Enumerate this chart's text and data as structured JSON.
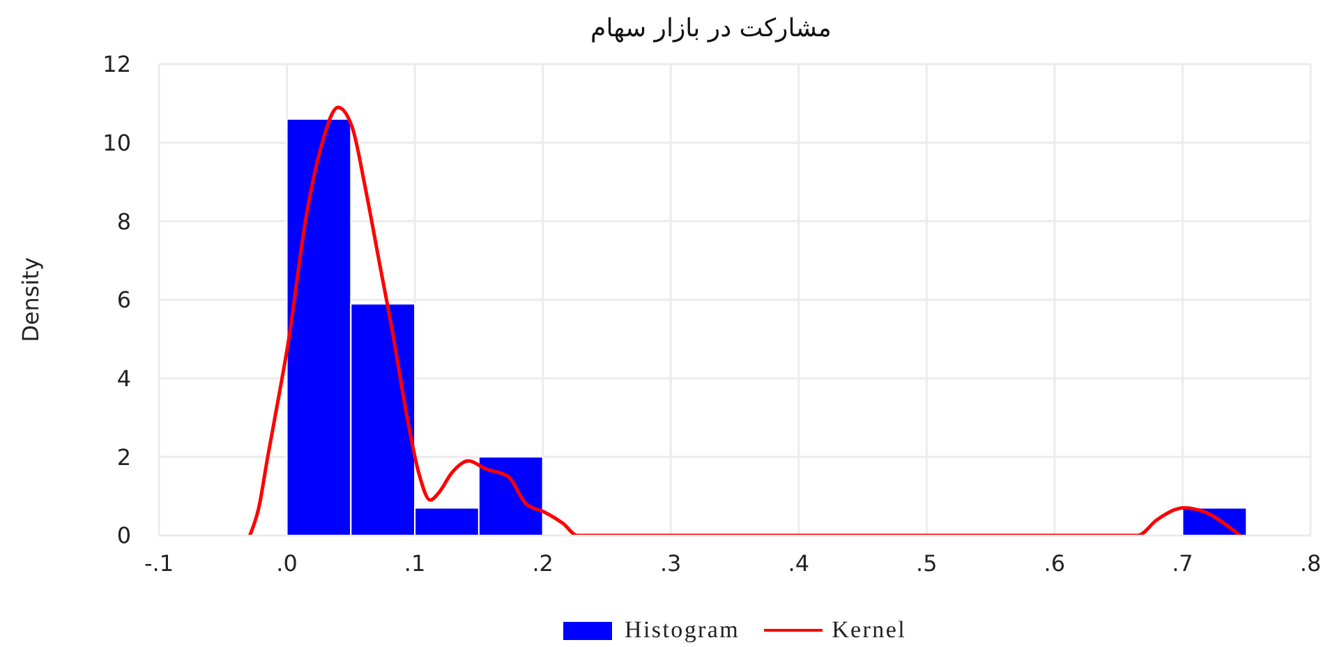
{
  "chart_data": {
    "type": "histogram",
    "title": "مشارکت در بازار سهام",
    "ylabel": "Density",
    "series": [
      {
        "name": "Histogram",
        "type": "histogram",
        "color": "#0000ff",
        "bins": [
          0,
          0.05,
          0.1,
          0.15,
          0.2,
          0.7,
          0.75
        ],
        "values": [
          10.6,
          5.9,
          0.7,
          2.0,
          0,
          0.7
        ]
      },
      {
        "name": "Kernel",
        "type": "line",
        "color": "#ff0000",
        "x": [
          -0.029,
          -0.022,
          -0.015,
          -0.006,
          0.001,
          0.015,
          0.026,
          0.04,
          0.051,
          0.061,
          0.072,
          0.083,
          0.094,
          0.103,
          0.112,
          0.119,
          0.129,
          0.142,
          0.155,
          0.173,
          0.187,
          0.201,
          0.216,
          0.227,
          0.665,
          0.68,
          0.701,
          0.717,
          0.741,
          0.745
        ],
        "values": [
          0,
          0.7,
          2.0,
          3.6,
          4.9,
          8.1,
          9.8,
          10.9,
          10.4,
          8.9,
          7.0,
          5.1,
          3.0,
          1.6,
          0.9,
          1.1,
          1.6,
          1.9,
          1.7,
          1.5,
          0.8,
          0.6,
          0.3,
          0,
          0,
          0.4,
          0.7,
          0.6,
          0.1,
          0
        ]
      }
    ],
    "xlim": [
      -0.1,
      0.8
    ],
    "xticks": [
      {
        "value": -0.1,
        "label": "-.1"
      },
      {
        "value": 0,
        "label": ".0"
      },
      {
        "value": 0.1,
        "label": ".1"
      },
      {
        "value": 0.2,
        "label": ".2"
      },
      {
        "value": 0.3,
        "label": ".3"
      },
      {
        "value": 0.4,
        "label": ".4"
      },
      {
        "value": 0.5,
        "label": ".5"
      },
      {
        "value": 0.6,
        "label": ".6"
      },
      {
        "value": 0.7,
        "label": ".7"
      },
      {
        "value": 0.8,
        "label": ".8"
      }
    ],
    "ylim": [
      0,
      12
    ],
    "yticks": [
      0,
      2,
      4,
      6,
      8,
      10,
      12
    ],
    "grid": true,
    "legend": "bottom"
  }
}
